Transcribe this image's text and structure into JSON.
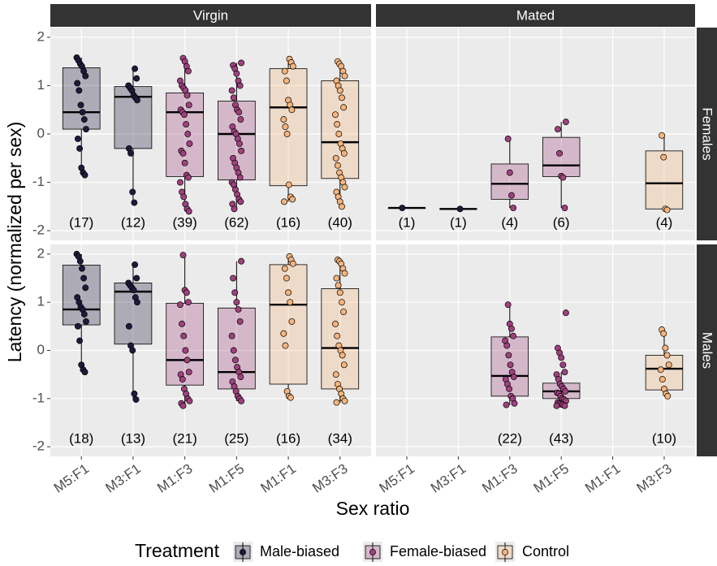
{
  "chart_data": {
    "type": "box",
    "x_label": "Sex ratio",
    "y_label": "Latency (normalized per sex)",
    "legend_title": "Treatment",
    "treatments": [
      {
        "name": "Male-biased",
        "color": "#1e1a3c"
      },
      {
        "name": "Female-biased",
        "color": "#a0417f"
      },
      {
        "name": "Control",
        "color": "#f6b47c"
      }
    ],
    "categories": [
      "M5:F1",
      "M3:F1",
      "M1:F3",
      "M1:F5",
      "M1:F1",
      "M3:F3"
    ],
    "category_treatment": [
      0,
      0,
      1,
      1,
      2,
      2
    ],
    "columns": [
      "Virgin",
      "Mated"
    ],
    "rows": [
      "Females",
      "Males"
    ],
    "ylim": [
      -2.2,
      2.2
    ],
    "yticks": [
      -2,
      -1,
      0,
      1,
      2
    ],
    "grid": true,
    "panels": [
      {
        "boxes": [
          {
            "min": -0.85,
            "q1": 0.1,
            "median": 0.45,
            "q3": 1.37,
            "max": 1.58,
            "n": 17,
            "n_label": "(17)",
            "points": [
              1.58,
              1.52,
              1.45,
              1.4,
              1.3,
              1.2,
              1.05,
              0.9,
              0.6,
              0.45,
              0.3,
              0.1,
              -0.1,
              -0.3,
              -0.7,
              -0.8,
              -0.85
            ]
          },
          {
            "min": -1.42,
            "q1": -0.3,
            "median": 0.77,
            "q3": 0.98,
            "max": 1.35,
            "n": 12,
            "n_label": "(12)",
            "points": [
              1.35,
              1.15,
              1.0,
              0.95,
              0.9,
              0.8,
              0.75,
              0.7,
              -0.3,
              -0.4,
              -1.2,
              -1.42
            ]
          },
          {
            "min": -1.6,
            "q1": -0.88,
            "median": 0.45,
            "q3": 0.85,
            "max": 1.57,
            "n": 39,
            "n_label": "(39)",
            "points": [
              1.57,
              1.5,
              1.4,
              1.3,
              1.1,
              1.0,
              0.95,
              0.9,
              0.8,
              0.6,
              0.5,
              0.45,
              0.4,
              0.2,
              0.0,
              -0.2,
              -0.35,
              -0.4,
              -0.6,
              -0.85,
              -0.9,
              -1.0,
              -1.2,
              -1.3,
              -1.45,
              -1.55,
              -1.6
            ]
          },
          {
            "min": -1.55,
            "q1": -0.95,
            "median": 0.0,
            "q3": 0.68,
            "max": 1.47,
            "n": 62,
            "n_label": "(62)",
            "points": [
              1.47,
              1.42,
              1.35,
              1.25,
              1.1,
              1.0,
              0.9,
              0.75,
              0.6,
              0.5,
              0.45,
              0.3,
              0.15,
              0.05,
              0.0,
              -0.1,
              -0.2,
              -0.35,
              -0.5,
              -0.6,
              -0.7,
              -0.8,
              -0.9,
              -1.0,
              -1.05,
              -1.15,
              -1.25,
              -1.35,
              -1.4,
              -1.45,
              -1.55
            ]
          },
          {
            "min": -1.4,
            "q1": -1.07,
            "median": 0.55,
            "q3": 1.35,
            "max": 1.55,
            "n": 16,
            "n_label": "(16)",
            "points": [
              1.55,
              1.48,
              1.4,
              1.3,
              1.1,
              0.7,
              0.6,
              0.5,
              0.3,
              0.15,
              0.0,
              -1.05,
              -1.3,
              -1.35,
              -1.4
            ]
          },
          {
            "min": -1.52,
            "q1": -0.92,
            "median": -0.17,
            "q3": 1.1,
            "max": 1.5,
            "n": 40,
            "n_label": "(40)",
            "points": [
              1.5,
              1.45,
              1.4,
              1.3,
              1.2,
              1.1,
              1.0,
              0.9,
              0.75,
              0.55,
              0.4,
              0.2,
              0.0,
              -0.2,
              -0.3,
              -0.4,
              -0.5,
              -0.65,
              -0.8,
              -0.9,
              -1.0,
              -1.1,
              -1.2,
              -1.3,
              -1.4,
              -1.5
            ]
          }
        ]
      },
      {
        "boxes": [
          {
            "min": -1.53,
            "q1": -1.53,
            "median": -1.53,
            "q3": -1.53,
            "max": -1.53,
            "n": 1,
            "n_label": "(1)",
            "points": [
              -1.53
            ]
          },
          {
            "min": -1.55,
            "q1": -1.55,
            "median": -1.55,
            "q3": -1.55,
            "max": -1.55,
            "n": 1,
            "n_label": "(1)",
            "points": [
              -1.55
            ]
          },
          {
            "min": -1.53,
            "q1": -1.35,
            "median": -1.03,
            "q3": -0.62,
            "max": -0.1,
            "n": 4,
            "n_label": "(4)",
            "points": [
              -0.1,
              -0.8,
              -1.27,
              -1.53
            ]
          },
          {
            "min": -1.53,
            "q1": -0.88,
            "median": -0.65,
            "q3": -0.07,
            "max": 0.25,
            "n": 6,
            "n_label": "(6)",
            "points": [
              0.25,
              0.1,
              -0.4,
              -0.87,
              -0.9,
              -1.53
            ]
          },
          null,
          {
            "min": -1.57,
            "q1": -1.55,
            "median": -1.02,
            "q3": -0.35,
            "max": -0.03,
            "n": 4,
            "n_label": "(4)",
            "points": [
              -0.03,
              -0.48,
              -1.55,
              -1.57
            ]
          }
        ]
      },
      {
        "boxes": [
          {
            "min": -0.45,
            "q1": 0.53,
            "median": 0.85,
            "q3": 1.77,
            "max": 2.0,
            "n": 18,
            "n_label": "(18)",
            "points": [
              2.0,
              1.95,
              1.85,
              1.7,
              1.5,
              1.3,
              1.1,
              1.0,
              0.9,
              0.85,
              0.75,
              0.6,
              0.5,
              0.2,
              -0.3,
              -0.4,
              -0.45
            ]
          },
          {
            "min": -1.02,
            "q1": 0.13,
            "median": 1.22,
            "q3": 1.4,
            "max": 1.78,
            "n": 13,
            "n_label": "(13)",
            "points": [
              1.78,
              1.5,
              1.4,
              1.35,
              1.3,
              1.25,
              1.1,
              1.0,
              0.5,
              0.1,
              0.0,
              -0.9,
              -1.02
            ]
          },
          {
            "min": -1.15,
            "q1": -0.72,
            "median": -0.2,
            "q3": 0.98,
            "max": 1.98,
            "n": 21,
            "n_label": "(21)",
            "points": [
              1.98,
              1.25,
              1.2,
              1.0,
              0.95,
              0.55,
              0.3,
              0.0,
              -0.2,
              -0.45,
              -0.5,
              -0.6,
              -0.8,
              -0.9,
              -1.0,
              -1.05,
              -1.1,
              -1.15
            ]
          },
          {
            "min": -1.05,
            "q1": -0.8,
            "median": -0.45,
            "q3": 0.88,
            "max": 1.85,
            "n": 25,
            "n_label": "(25)",
            "points": [
              1.85,
              1.5,
              1.2,
              1.0,
              0.85,
              0.6,
              0.3,
              0.0,
              -0.2,
              -0.35,
              -0.45,
              -0.55,
              -0.65,
              -0.75,
              -0.85,
              -0.95,
              -1.0,
              -1.05
            ]
          },
          {
            "min": -0.98,
            "q1": -0.7,
            "median": 0.95,
            "q3": 1.78,
            "max": 1.95,
            "n": 16,
            "n_label": "(16)",
            "points": [
              1.95,
              1.88,
              1.8,
              1.7,
              1.5,
              1.2,
              1.0,
              0.6,
              0.35,
              0.1,
              -0.85,
              -0.95,
              -0.98
            ]
          },
          {
            "min": -1.08,
            "q1": -0.8,
            "median": 0.05,
            "q3": 1.28,
            "max": 1.88,
            "n": 34,
            "n_label": "(34)",
            "points": [
              1.88,
              1.85,
              1.8,
              1.7,
              1.6,
              1.5,
              1.35,
              1.2,
              1.0,
              0.8,
              0.55,
              0.3,
              0.1,
              0.0,
              -0.1,
              -0.3,
              -0.5,
              -0.7,
              -0.8,
              -0.9,
              -1.0,
              -1.05,
              -1.08
            ]
          }
        ]
      },
      {
        "boxes": [
          null,
          null,
          {
            "min": -1.13,
            "q1": -0.95,
            "median": -0.53,
            "q3": 0.28,
            "max": 0.95,
            "n": 22,
            "n_label": "(22)",
            "points": [
              0.95,
              0.55,
              0.45,
              0.3,
              0.2,
              0.1,
              -0.1,
              -0.3,
              -0.45,
              -0.55,
              -0.6,
              -0.7,
              -0.8,
              -0.95,
              -1.0,
              -1.1,
              -1.13
            ]
          },
          {
            "min": -1.15,
            "q1": -1.0,
            "median": -0.85,
            "q3": -0.68,
            "max": -0.45,
            "n": 43,
            "n_label": "(43)",
            "points": [
              0.78,
              0.05,
              -0.05,
              -0.15,
              -0.3,
              -0.45,
              -0.5,
              -0.6,
              -0.7,
              -0.75,
              -0.8,
              -0.85,
              -0.88,
              -0.9,
              -0.95,
              -1.0,
              -1.02,
              -1.05,
              -1.08,
              -1.1,
              -1.12,
              -1.13,
              -1.15,
              -1.15
            ]
          },
          null,
          {
            "min": -0.95,
            "q1": -0.82,
            "median": -0.38,
            "q3": -0.1,
            "max": 0.43,
            "n": 10,
            "n_label": "(10)",
            "points": [
              0.43,
              0.35,
              0.05,
              -0.1,
              -0.3,
              -0.4,
              -0.6,
              -0.8,
              -0.9,
              -0.95
            ]
          }
        ]
      }
    ]
  }
}
